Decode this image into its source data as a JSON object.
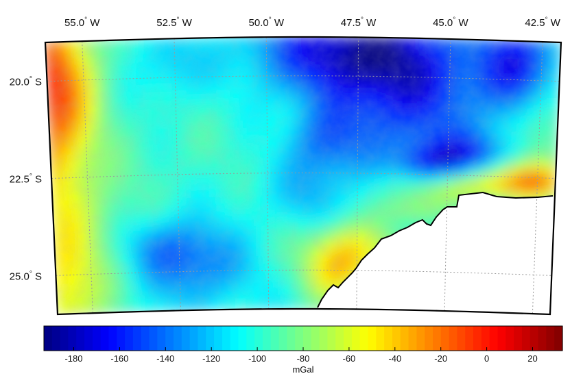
{
  "map": {
    "lon_labels": [
      {
        "lon": -55.0,
        "deg": "55.0",
        "hemi": "W"
      },
      {
        "lon": -52.5,
        "deg": "52.5",
        "hemi": "W"
      },
      {
        "lon": -50.0,
        "deg": "50.0",
        "hemi": "W"
      },
      {
        "lon": -47.5,
        "deg": "47.5",
        "hemi": "W"
      },
      {
        "lon": -45.0,
        "deg": "45.0",
        "hemi": "W"
      },
      {
        "lon": -42.5,
        "deg": "42.5",
        "hemi": "W"
      }
    ],
    "lat_labels": [
      {
        "lat": -20.0,
        "deg": "20.0",
        "hemi": "S"
      },
      {
        "lat": -22.5,
        "deg": "22.5",
        "hemi": "S"
      },
      {
        "lat": -25.0,
        "deg": "25.0",
        "hemi": "S"
      }
    ],
    "extent": {
      "lon_min": -56.0,
      "lon_max": -42.0,
      "lat_min": -26.0,
      "lat_max": -19.0
    },
    "land_color": "#ffffff",
    "grid": "dotted"
  },
  "colorbar": {
    "min": -193,
    "max": 33,
    "ticks": [
      -180,
      -160,
      -140,
      -120,
      -100,
      -80,
      -60,
      -40,
      -20,
      0,
      20
    ],
    "unit": "mGal",
    "colormap": "jet"
  }
}
